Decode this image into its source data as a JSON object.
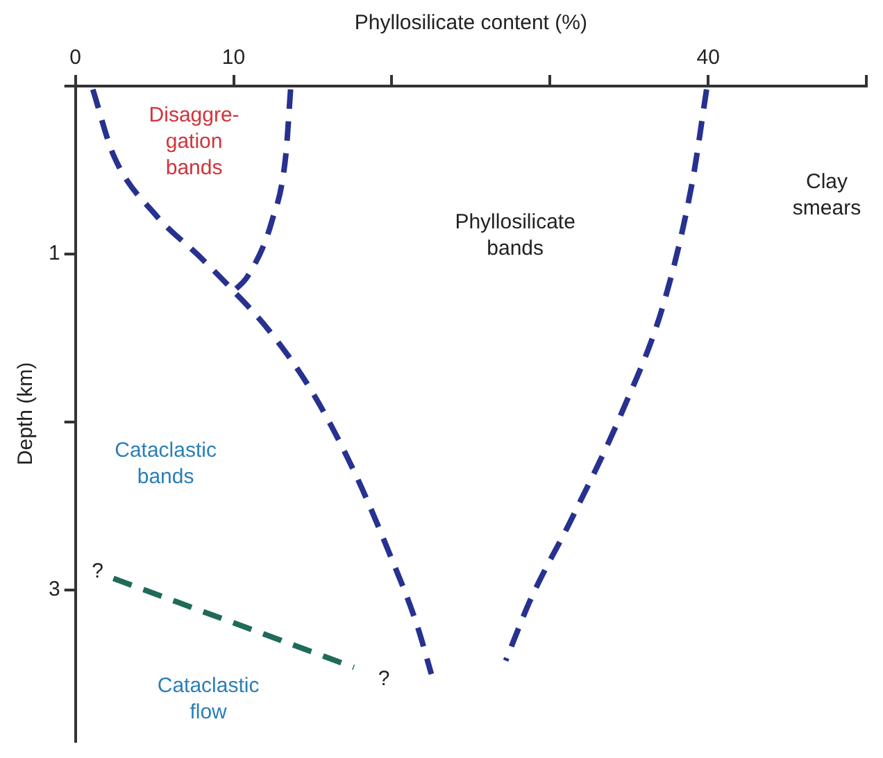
{
  "chart_data": {
    "type": "line",
    "xlabel": "Phyllosilicate content (%)",
    "ylabel": "Depth (km)",
    "xlim": [
      0,
      50
    ],
    "xticks": [
      0,
      10,
      {
        "value": 20,
        "label": null
      },
      {
        "value": 30,
        "label": null
      },
      40,
      {
        "value": 50,
        "label": null
      }
    ],
    "ylim": [
      3.9,
      0
    ],
    "yticks": [
      {
        "value": 0,
        "label": null
      },
      1,
      {
        "value": 2,
        "label": null
      },
      3
    ],
    "grid": false,
    "legend": false,
    "marker": "none",
    "line_style": "dashed",
    "series": [
      {
        "color": "#27318f",
        "x": [
          1.1,
          2.4,
          5.1,
          7.8,
          10,
          12.2,
          14.9,
          17.6,
          19.8,
          21.6,
          22.5
        ],
        "values": [
          0.02,
          0.41,
          0.77,
          1.01,
          1.22,
          1.45,
          1.81,
          2.29,
          2.77,
          3.21,
          3.5
        ]
      },
      {
        "color": "#27318f",
        "x": [
          13.6,
          13.3,
          12.4,
          10.9,
          10
        ],
        "values": [
          0.02,
          0.41,
          0.81,
          1.13,
          1.22
        ]
      },
      {
        "color": "#27318f",
        "x": [
          39.9,
          39,
          37.2,
          34.6,
          31.4,
          28.8,
          27.2
        ],
        "values": [
          0.02,
          0.57,
          1.29,
          1.93,
          2.57,
          3.05,
          3.42
        ]
      },
      {
        "color": "#1f6b5a",
        "x": [
          2.4,
          17.6
        ],
        "values": [
          2.93,
          3.46
        ]
      }
    ],
    "annotations": [
      "Disaggre-\ngation\nbands",
      "Clay\nsmears",
      "Phyllosilicate\nbands",
      "Cataclastic\nbands",
      "?",
      "?",
      "Cataclastic\nflow"
    ]
  }
}
